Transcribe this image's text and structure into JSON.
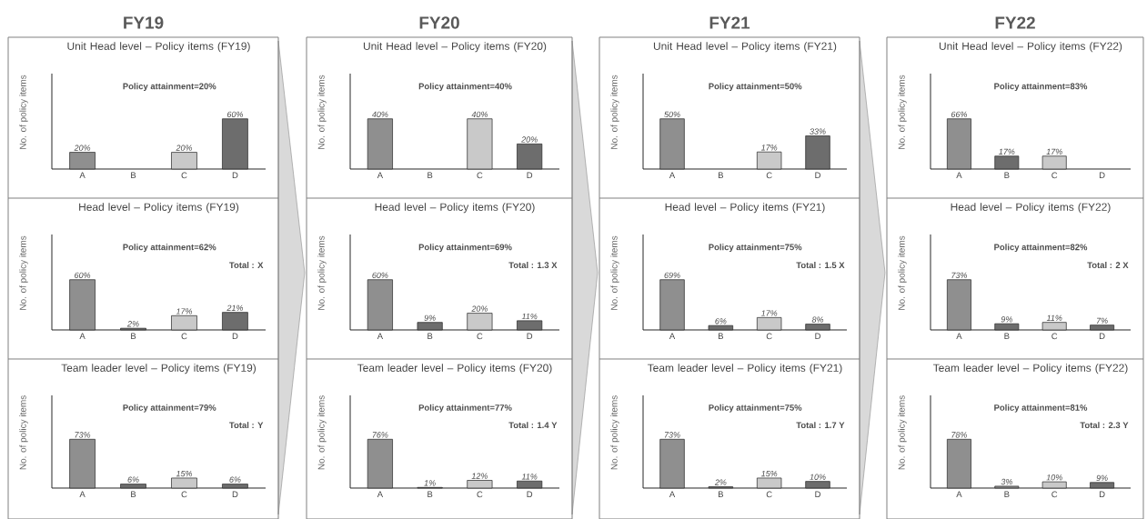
{
  "chart_data": [
    {
      "type": "bar",
      "title": "FY19",
      "subtitle": "Unit Head level – Policy items (FY19)",
      "ylabel": "No. of policy items",
      "categories": [
        "A",
        "B",
        "C",
        "D"
      ],
      "values": [
        20,
        null,
        20,
        60
      ],
      "colors": [
        "#8f8f8f",
        "#6d6d6d",
        "#c9c9c9",
        "#6d6d6d"
      ],
      "value_labels": [
        "20%",
        null,
        "20%",
        "60%"
      ],
      "annotations": [
        "Policy attainment=20%"
      ]
    },
    {
      "type": "bar",
      "title": "FY20",
      "subtitle": "Unit Head level – Policy items (FY20)",
      "ylabel": "No. of policy items",
      "categories": [
        "A",
        "B",
        "C",
        "D"
      ],
      "values": [
        40,
        null,
        40,
        20
      ],
      "colors": [
        "#8f8f8f",
        "#6d6d6d",
        "#c9c9c9",
        "#6d6d6d"
      ],
      "value_labels": [
        "40%",
        null,
        "40%",
        "20%"
      ],
      "annotations": [
        "Policy attainment=40%"
      ]
    },
    {
      "type": "bar",
      "title": "FY21",
      "subtitle": "Unit Head level – Policy items (FY21)",
      "ylabel": "No. of policy items",
      "categories": [
        "A",
        "B",
        "C",
        "D"
      ],
      "values": [
        50,
        null,
        17,
        33
      ],
      "colors": [
        "#8f8f8f",
        "#6d6d6d",
        "#c9c9c9",
        "#6d6d6d"
      ],
      "value_labels": [
        "50%",
        null,
        "17%",
        "33%"
      ],
      "annotations": [
        "Policy attainment=50%"
      ]
    },
    {
      "type": "bar",
      "title": "FY22",
      "subtitle": "Unit Head level – Policy items (FY22)",
      "ylabel": "No. of policy items",
      "categories": [
        "A",
        "B",
        "C",
        "D"
      ],
      "values": [
        66,
        17,
        17,
        null
      ],
      "colors": [
        "#8f8f8f",
        "#6d6d6d",
        "#c9c9c9",
        "#6d6d6d"
      ],
      "value_labels": [
        "66%",
        "17%",
        "17%",
        null
      ],
      "annotations": [
        "Policy attainment=83%"
      ]
    },
    {
      "type": "bar",
      "title": "Head level – Policy items (FY19)",
      "ylabel": "No. of policy items",
      "categories": [
        "A",
        "B",
        "C",
        "D"
      ],
      "values": [
        60,
        2,
        17,
        21
      ],
      "colors": [
        "#8f8f8f",
        "#6d6d6d",
        "#c9c9c9",
        "#6d6d6d"
      ],
      "value_labels": [
        "60%",
        "2%",
        "17%",
        "21%"
      ],
      "annotations": [
        "Policy attainment=62%",
        "Total : X"
      ]
    },
    {
      "type": "bar",
      "title": "Head level – Policy items (FY20)",
      "ylabel": "No. of policy items",
      "categories": [
        "A",
        "B",
        "C",
        "D"
      ],
      "values": [
        60,
        9,
        20,
        11
      ],
      "colors": [
        "#8f8f8f",
        "#6d6d6d",
        "#c9c9c9",
        "#6d6d6d"
      ],
      "value_labels": [
        "60%",
        "9%",
        "20%",
        "11%"
      ],
      "annotations": [
        "Policy attainment=69%",
        "Total : 1.3 X"
      ]
    },
    {
      "type": "bar",
      "title": "Head level – Policy items (FY21)",
      "ylabel": "No. of policy items",
      "categories": [
        "A",
        "B",
        "C",
        "D"
      ],
      "values": [
        69,
        6,
        17,
        8
      ],
      "colors": [
        "#8f8f8f",
        "#6d6d6d",
        "#c9c9c9",
        "#6d6d6d"
      ],
      "value_labels": [
        "69%",
        "6%",
        "17%",
        "8%"
      ],
      "annotations": [
        "Policy attainment=75%",
        "Total : 1.5 X"
      ]
    },
    {
      "type": "bar",
      "title": "Head level – Policy items (FY22)",
      "ylabel": "No. of policy items",
      "categories": [
        "A",
        "B",
        "C",
        "D"
      ],
      "values": [
        73,
        9,
        11,
        7
      ],
      "colors": [
        "#8f8f8f",
        "#6d6d6d",
        "#c9c9c9",
        "#6d6d6d"
      ],
      "value_labels": [
        "73%",
        "9%",
        "11%",
        "7%"
      ],
      "annotations": [
        "Policy attainment=82%",
        "Total : 2 X"
      ]
    },
    {
      "type": "bar",
      "title": "Team leader level – Policy items (FY19)",
      "ylabel": "No. of policy items",
      "categories": [
        "A",
        "B",
        "C",
        "D"
      ],
      "values": [
        73,
        6,
        15,
        6
      ],
      "colors": [
        "#8f8f8f",
        "#6d6d6d",
        "#c9c9c9",
        "#6d6d6d"
      ],
      "value_labels": [
        "73%",
        "6%",
        "15%",
        "6%"
      ],
      "annotations": [
        "Policy attainment=79%",
        "Total : Y"
      ]
    },
    {
      "type": "bar",
      "title": "Team leader level – Policy items (FY20)",
      "ylabel": "No. of policy items",
      "categories": [
        "A",
        "B",
        "C",
        "D"
      ],
      "values": [
        76,
        1,
        12,
        11
      ],
      "colors": [
        "#8f8f8f",
        "#6d6d6d",
        "#c9c9c9",
        "#6d6d6d"
      ],
      "value_labels": [
        "76%",
        "1%",
        "12%",
        "11%"
      ],
      "annotations": [
        "Policy attainment=77%",
        "Total : 1.4 Y"
      ]
    },
    {
      "type": "bar",
      "title": "Team leader level – Policy items (FY21)",
      "ylabel": "No. of policy items",
      "categories": [
        "A",
        "B",
        "C",
        "D"
      ],
      "values": [
        73,
        2,
        15,
        10
      ],
      "colors": [
        "#8f8f8f",
        "#6d6d6d",
        "#c9c9c9",
        "#6d6d6d"
      ],
      "value_labels": [
        "73%",
        "2%",
        "15%",
        "10%"
      ],
      "annotations": [
        "Policy attainment=75%",
        "Total : 1.7 Y"
      ]
    },
    {
      "type": "bar",
      "title": "Team leader level – Policy items (FY22)",
      "ylabel": "No. of policy items",
      "categories": [
        "A",
        "B",
        "C",
        "D"
      ],
      "values": [
        78,
        3,
        10,
        9
      ],
      "colors": [
        "#8f8f8f",
        "#8f8f8f",
        "#c9c9c9",
        "#6d6d6d"
      ],
      "value_labels": [
        "78%",
        "3%",
        "10%",
        "9%"
      ],
      "annotations": [
        "Policy attainment=81%",
        "Total : 2.3 Y"
      ]
    }
  ]
}
